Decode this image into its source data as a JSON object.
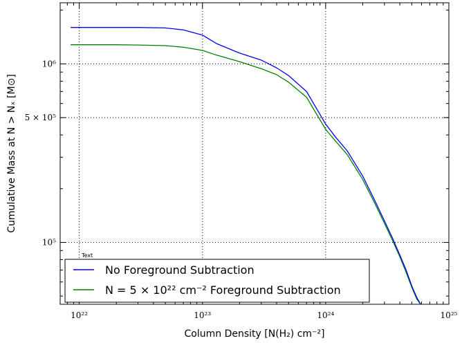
{
  "chart_data": {
    "type": "line",
    "xscale": "log",
    "yscale": "log",
    "xlim": [
      7e+21,
      1e+25
    ],
    "ylim": [
      45000,
      2200000
    ],
    "grid": true,
    "xlabel": "Column Density [N(H₂) cm⁻²]",
    "ylabel": "Cumulative Mass at N > Nₓ [M⊙]",
    "xtick_labels": [
      "10²²",
      "10²³",
      "10²⁴",
      "10²⁵"
    ],
    "xtick_values": [
      1e+22,
      1e+23,
      1e+24,
      1e+25
    ],
    "ytick_labels": [
      "10⁵",
      "5 × 10⁵",
      "10⁶"
    ],
    "ytick_values": [
      100000,
      500000,
      1000000
    ],
    "legend_placement": "lower left",
    "annotation": "Text",
    "series": [
      {
        "name": "No Foreground Subtraction",
        "color": "#0000ff",
        "points": [
          [
            8.5e+21,
            1600000
          ],
          [
            1e+22,
            1600000
          ],
          [
            2e+22,
            1600000
          ],
          [
            3e+22,
            1600000
          ],
          [
            5e+22,
            1590000
          ],
          [
            7e+22,
            1550000
          ],
          [
            1e+23,
            1450000
          ],
          [
            1.3e+23,
            1300000
          ],
          [
            2e+23,
            1150000
          ],
          [
            3e+23,
            1050000
          ],
          [
            4e+23,
            950000
          ],
          [
            5e+23,
            860000
          ],
          [
            7e+23,
            700000
          ],
          [
            1e+24,
            460000
          ],
          [
            1.2e+24,
            390000
          ],
          [
            1.5e+24,
            325000
          ],
          [
            2e+24,
            235000
          ],
          [
            2.5e+24,
            172000
          ],
          [
            3e+24,
            132000
          ],
          [
            3.5e+24,
            105000
          ],
          [
            4e+24,
            85000
          ],
          [
            4.5e+24,
            70000
          ],
          [
            5e+24,
            57000
          ],
          [
            5.5e+24,
            49000
          ],
          [
            5.9e+24,
            45000
          ]
        ]
      },
      {
        "name": "N = 5 × 10²² cm⁻² Foreground Subtraction",
        "color": "#008000",
        "points": [
          [
            8.5e+21,
            1280000
          ],
          [
            1e+22,
            1280000
          ],
          [
            2e+22,
            1280000
          ],
          [
            3e+22,
            1275000
          ],
          [
            5e+22,
            1265000
          ],
          [
            7e+22,
            1240000
          ],
          [
            1e+23,
            1190000
          ],
          [
            1.3e+23,
            1120000
          ],
          [
            2e+23,
            1030000
          ],
          [
            3e+23,
            940000
          ],
          [
            4e+23,
            870000
          ],
          [
            5e+23,
            790000
          ],
          [
            7e+23,
            650000
          ],
          [
            1e+24,
            430000
          ],
          [
            1.2e+24,
            370000
          ],
          [
            1.5e+24,
            310000
          ],
          [
            2e+24,
            225000
          ],
          [
            2.5e+24,
            166000
          ],
          [
            3e+24,
            128000
          ],
          [
            3.5e+24,
            102000
          ],
          [
            4e+24,
            83000
          ],
          [
            4.5e+24,
            68000
          ],
          [
            5e+24,
            56000
          ],
          [
            5.5e+24,
            48000
          ],
          [
            5.9e+24,
            45000
          ]
        ]
      }
    ]
  }
}
